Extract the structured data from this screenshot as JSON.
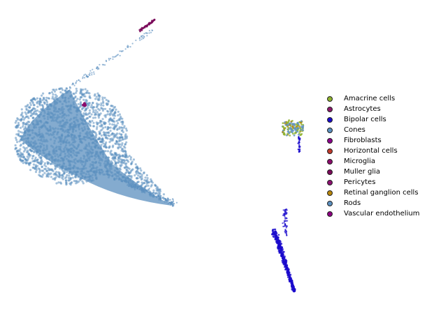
{
  "chart_data": {
    "type": "scatter",
    "title": "",
    "xlabel": "",
    "ylabel": "",
    "axes_visible": false,
    "grid": false,
    "legend_position": "right",
    "series": [
      {
        "name": "Amacrine cells",
        "color": "#8fb32e"
      },
      {
        "name": "Astrocytes",
        "color": "#8b1a6b"
      },
      {
        "name": "Bipolar cells",
        "color": "#1a0acc"
      },
      {
        "name": "Cones",
        "color": "#5b8fbf"
      },
      {
        "name": "Fibroblasts",
        "color": "#8b008b"
      },
      {
        "name": "Horizontal cells",
        "color": "#c0392b"
      },
      {
        "name": "Microglia",
        "color": "#8b0a6b"
      },
      {
        "name": "Muller glia",
        "color": "#7a0a5a"
      },
      {
        "name": "Pericytes",
        "color": "#8b1070"
      },
      {
        "name": "Retinal ganglion cells",
        "color": "#b8860b"
      },
      {
        "name": "Rods",
        "color": "#5b8fbf"
      },
      {
        "name": "Vascular endothelium",
        "color": "#8b0080"
      }
    ],
    "clusters": [
      {
        "series": "Rods",
        "shape": "wedge",
        "approx_points": 9000
      },
      {
        "series": "Microglia",
        "shape": "small-patch",
        "approx_points": 40
      },
      {
        "series": "Muller glia",
        "shape": "tip",
        "approx_points": 40
      },
      {
        "series": "Amacrine cells",
        "shape": "compact-cluster",
        "approx_points": 120
      },
      {
        "series": "Bipolar cells",
        "shape": "streak",
        "approx_points": 600
      }
    ]
  }
}
